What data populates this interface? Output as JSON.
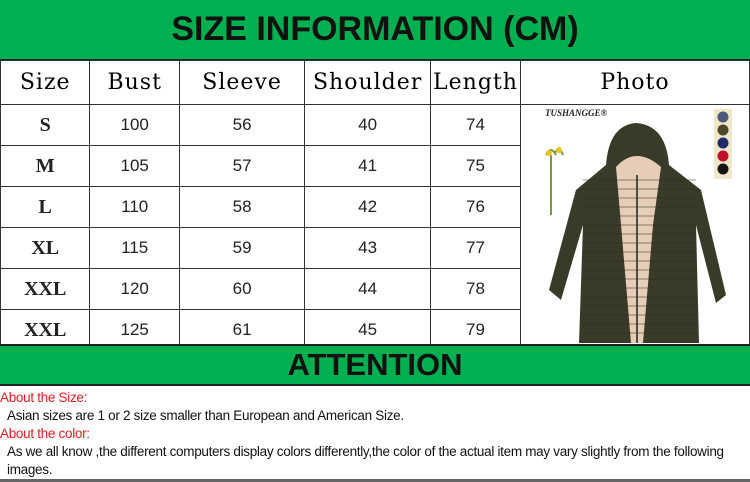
{
  "title": "SIZE INFORMATION (CM)",
  "table": {
    "headers": [
      "Size",
      "Bust",
      "Sleeve",
      "Shoulder",
      "Length",
      "Photo"
    ],
    "rows": [
      [
        "S",
        "100",
        "56",
        "40",
        "74"
      ],
      [
        "M",
        "105",
        "57",
        "41",
        "75"
      ],
      [
        "L",
        "110",
        "58",
        "42",
        "76"
      ],
      [
        "XL",
        "115",
        "59",
        "43",
        "77"
      ],
      [
        "XXL",
        "120",
        "60",
        "44",
        "78"
      ],
      [
        "XXL",
        "125",
        "61",
        "45",
        "79"
      ]
    ]
  },
  "photo": {
    "brand": "TUSHANGGE®",
    "swatches": [
      "#4a5a78",
      "#4a4a2a",
      "#1e2a6a",
      "#c0102a",
      "#151515"
    ],
    "coat_color": "#3a3a28",
    "lining_color": "#e6cdb8"
  },
  "attention": "ATTENTION",
  "notes": {
    "size_heading": "About the Size:",
    "size_text": "Asian sizes are 1 or 2 size smaller than European and American Size.",
    "color_heading": "About the color:",
    "color_text": "As we all know ,the different computers display colors differently,the color of the actual item may vary slightly from the following images."
  },
  "colors": {
    "band": "#00b050",
    "heading_red": "#e02020"
  }
}
